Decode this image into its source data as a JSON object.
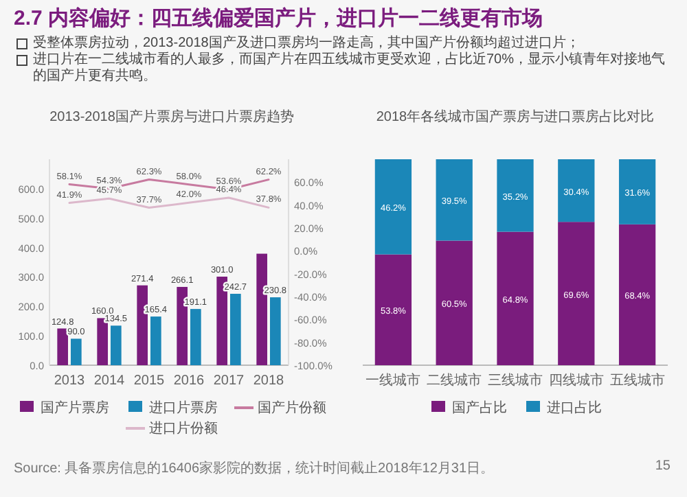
{
  "chart_data": [
    {
      "type": "other",
      "title": "2.7 内容偏好：四五线偏爱国产片，进口片一二线更有市场",
      "annotations": [
        "受整体票房拉动，2013-2018国产及进口票房均一路走高，其中国产片份额均超过进口片；",
        "进口片在一二线城市看的人最多，而国产片在四五线城市更受欢迎，占比近70%，显示小镇青年对接地气的国产片更有共鸣。"
      ]
    },
    {
      "type": "bar",
      "title": "2013-2018国产片票房与进口片票房趋势",
      "categories": [
        "2013",
        "2014",
        "2015",
        "2016",
        "2017",
        "2018"
      ],
      "ylim": [
        0,
        700
      ],
      "yticks": [
        {
          "value": 0,
          "label": "0.0"
        },
        {
          "value": 100,
          "label": "100.0"
        },
        {
          "value": 200,
          "label": "200.0"
        },
        {
          "value": 300,
          "label": "300.0"
        },
        {
          "value": 400,
          "label": "400.0"
        },
        {
          "value": 500,
          "label": "500.0"
        },
        {
          "value": 600,
          "label": "600.0"
        }
      ],
      "y2lim": [
        -100,
        80
      ],
      "y2ticks": [
        {
          "value": -100,
          "label": "-100.0%"
        },
        {
          "value": -80,
          "label": "-80.0%"
        },
        {
          "value": -60,
          "label": "-60.0%"
        },
        {
          "value": -40,
          "label": "-40.0%"
        },
        {
          "value": -20,
          "label": "-20.0%"
        },
        {
          "value": 0,
          "label": "0.0%"
        },
        {
          "value": 20,
          "label": "20.0%"
        },
        {
          "value": 40,
          "label": "40.0%"
        },
        {
          "value": 60,
          "label": "60.0%"
        }
      ],
      "series": [
        {
          "name": "国产片票房",
          "color": "#7a1c7d",
          "values": [
            124.8,
            160.0,
            271.4,
            266.1,
            301.0,
            379.0
          ],
          "value_labels": [
            "124.8",
            "160.0",
            "271.4",
            "266.1",
            "301.0",
            null
          ]
        },
        {
          "name": "进口片票房",
          "color": "#1b87b8",
          "values": [
            90.0,
            134.5,
            165.4,
            191.1,
            242.7,
            230.8
          ],
          "value_labels": [
            "90.0",
            "134.5",
            "165.4",
            "191.1",
            "242.7",
            "230.8"
          ]
        },
        {
          "name": "国产片份额",
          "type": "line",
          "axis": "y2",
          "color": "#c77a9f",
          "values": [
            58.1,
            54.3,
            62.3,
            58.0,
            53.6,
            62.2
          ],
          "value_labels": [
            "58.1%",
            "54.3%",
            "62.3%",
            "58.0%",
            "53.6%",
            "62.2%"
          ]
        },
        {
          "name": "进口片份额",
          "type": "line",
          "axis": "y2",
          "color": "#dcb8cb",
          "values": [
            41.9,
            45.7,
            37.7,
            42.0,
            46.4,
            37.8
          ],
          "value_labels": [
            "41.9%",
            "45.7%",
            "37.7%",
            "42.0%",
            "46.4%",
            "37.8%"
          ]
        }
      ],
      "legend": "bottom",
      "annotations": [
        "Source: 具备票房信息的16406家影院的数据，统计时间截止2018年12月31日。"
      ]
    },
    {
      "type": "bar",
      "title": "2018年各线城市国产票房与进口票房占比对比",
      "stacked": true,
      "categories": [
        "一线城市",
        "二线城市",
        "三线城市",
        "四线城市",
        "五线城市"
      ],
      "series": [
        {
          "name": "国产占比",
          "color": "#7a1c7d",
          "values": [
            53.8,
            60.5,
            64.8,
            69.6,
            68.4
          ],
          "value_labels": [
            "53.8%",
            "60.5%",
            "64.8%",
            "69.6%",
            "68.4%"
          ]
        },
        {
          "name": "进口占比",
          "color": "#1b87b8",
          "values": [
            46.2,
            39.5,
            35.2,
            30.4,
            31.6
          ],
          "value_labels": [
            "46.2%",
            "39.5%",
            "35.2%",
            "30.4%",
            "31.6%"
          ]
        }
      ],
      "legend": "bottom",
      "annotations": [
        "15"
      ]
    }
  ]
}
